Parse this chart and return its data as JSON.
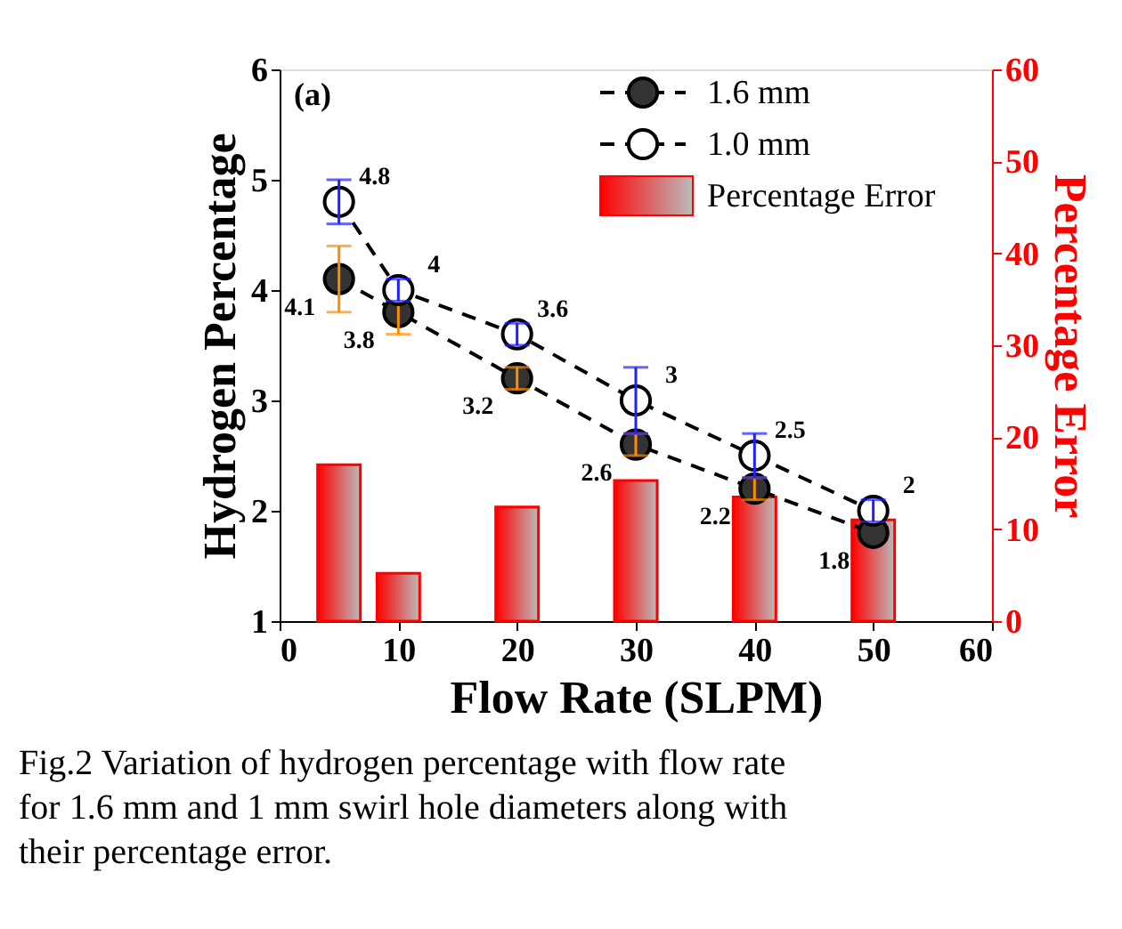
{
  "chart_data": {
    "type": "line",
    "xlabel": "Flow Rate (SLPM)",
    "ylabel": "Hydrogen Percentage",
    "y2label": "Percentage Error",
    "x": [
      5,
      10,
      20,
      30,
      40,
      50
    ],
    "series": [
      {
        "name": "1.6 mm",
        "color": "#000000",
        "values": [
          4.1,
          3.8,
          3.2,
          2.6,
          2.2,
          1.8
        ],
        "errors": [
          0.3,
          0.2,
          0.1,
          0.1,
          0.1,
          null
        ],
        "value_labels": [
          "4.1",
          "3.8",
          "3.2",
          "2.6",
          "2.2",
          "1.8"
        ]
      },
      {
        "name": "1.0 mm",
        "color": "#000000",
        "values": [
          4.8,
          4,
          3.6,
          3,
          2.5,
          2
        ],
        "errors": [
          0.2,
          0.1,
          0.1,
          0.3,
          0.2,
          0.1
        ],
        "value_labels": [
          "4.8",
          "4",
          "3.6",
          "3",
          "2.5",
          "2"
        ]
      },
      {
        "name": "Percentage Error",
        "type": "bar",
        "axis": "y2",
        "color": "#ff0000",
        "values": [
          17.0,
          5.2,
          12.4,
          15.3,
          13.5,
          11.0
        ]
      }
    ],
    "xlim": [
      0,
      60
    ],
    "xticks": [
      0,
      10,
      20,
      30,
      40,
      50,
      60
    ],
    "ylim": [
      1,
      6
    ],
    "yticks": [
      1,
      2,
      3,
      4,
      5,
      6
    ],
    "y2lim": [
      0,
      60
    ],
    "y2ticks": [
      0,
      10,
      20,
      30,
      40,
      50,
      60
    ],
    "marker": "circle",
    "line_style": "dashed",
    "legend": "top right",
    "grid": false,
    "annotations": [
      "(a)",
      "Fig.2 Variation of hydrogen percentage with flow rate for 1.6 mm and 1 mm swirl hole diameters along with their percentage error."
    ]
  }
}
